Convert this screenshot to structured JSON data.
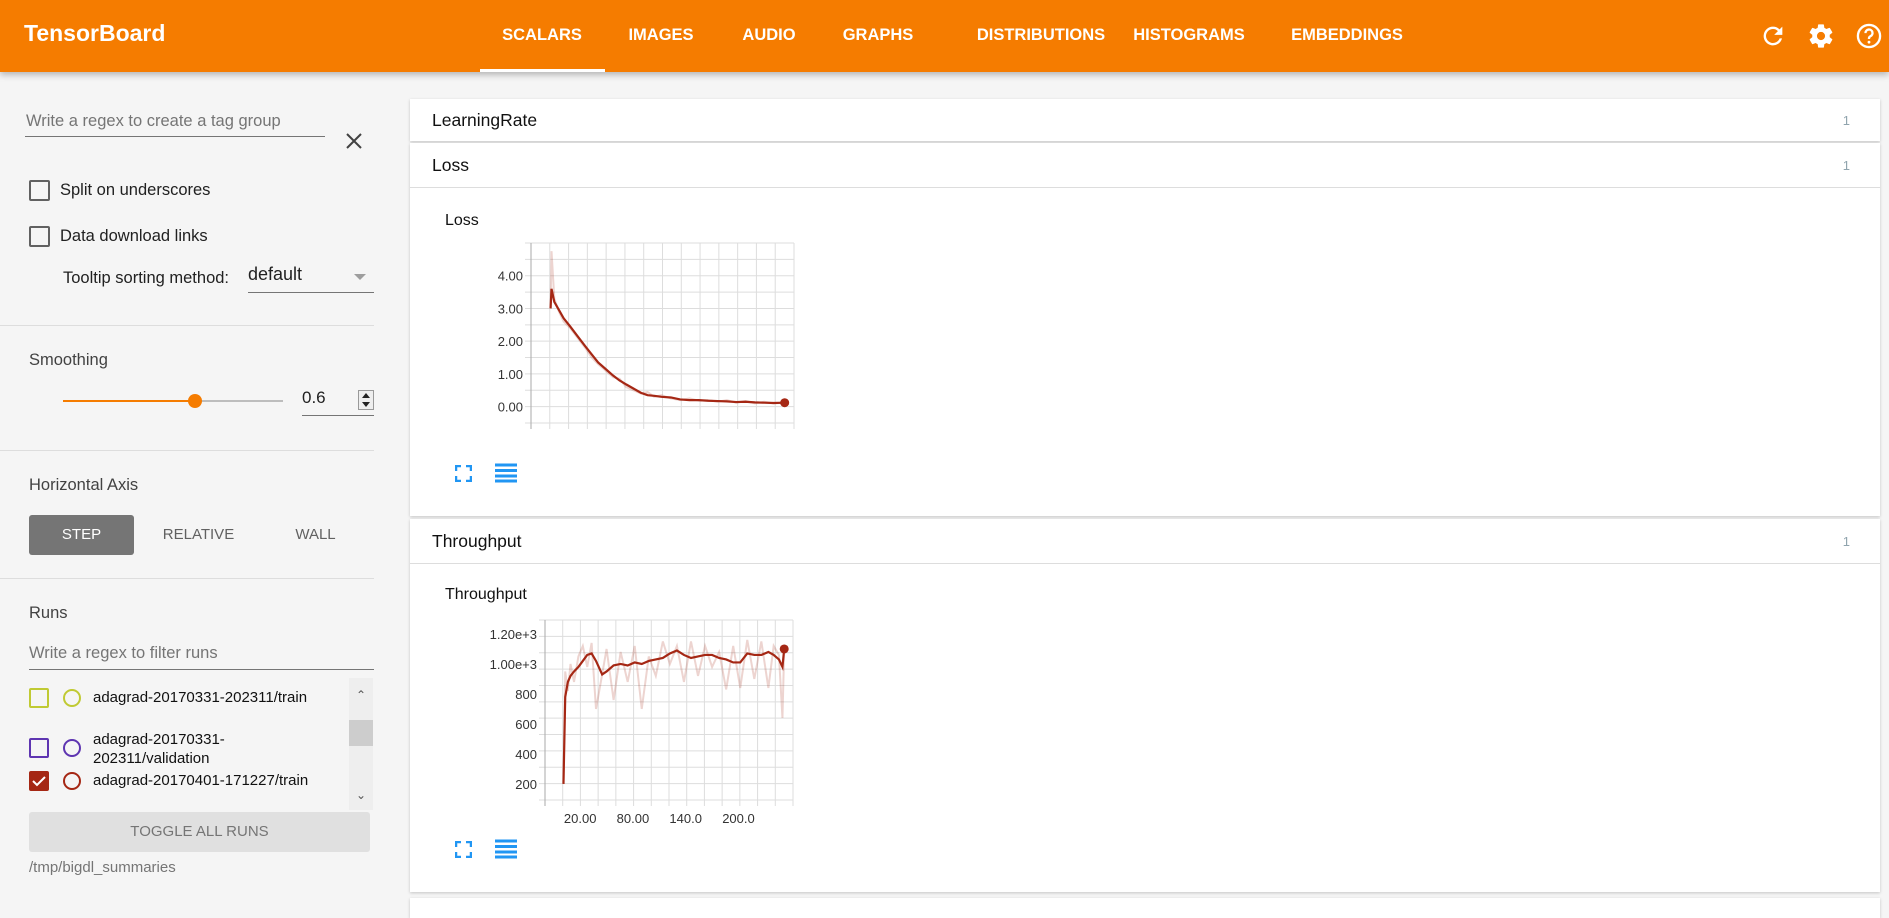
{
  "header": {
    "title": "TensorBoard",
    "tabs": [
      "SCALARS",
      "IMAGES",
      "AUDIO",
      "GRAPHS",
      "DISTRIBUTIONS",
      "HISTOGRAMS",
      "EMBEDDINGS"
    ],
    "active_tab": "SCALARS",
    "icons": [
      "refresh-icon",
      "settings-icon",
      "help-icon"
    ],
    "color": "#f57c00"
  },
  "sidebar": {
    "tag_regex_placeholder": "Write a regex to create a tag group",
    "split_underscores": {
      "label": "Split on underscores",
      "checked": false
    },
    "download_links": {
      "label": "Data download links",
      "checked": false
    },
    "tooltip_sort": {
      "label": "Tooltip sorting method:",
      "value": "default"
    },
    "smoothing": {
      "label": "Smoothing",
      "value": "0.6",
      "fraction": 0.6
    },
    "horizontal_axis": {
      "label": "Horizontal Axis",
      "options": [
        "STEP",
        "RELATIVE",
        "WALL"
      ],
      "selected": "STEP"
    },
    "runs": {
      "label": "Runs",
      "filter_placeholder": "Write a regex to filter runs",
      "items": [
        {
          "name": "adagrad-20170331-202311/train",
          "checked": false,
          "color": "#c0ca33"
        },
        {
          "name": "adagrad-20170331-202311/validation",
          "checked": false,
          "color": "#5e35b1"
        },
        {
          "name": "adagrad-20170401-171227/train",
          "checked": true,
          "color": "#a52714"
        }
      ],
      "toggle_all": "TOGGLE ALL RUNS",
      "logdir": "/tmp/bigdl_summaries"
    }
  },
  "cards": [
    {
      "title": "LearningRate",
      "count": "1"
    },
    {
      "title": "Loss",
      "count": "1"
    },
    {
      "title": "Throughput",
      "count": "1"
    }
  ],
  "chart_data": [
    {
      "type": "line",
      "title": "Loss",
      "xlim": [
        -20,
        262
      ],
      "ylim": [
        -0.5,
        5.0
      ],
      "yticks": [
        "4.00",
        "3.00",
        "2.00",
        "1.00",
        "0.00"
      ],
      "ytick_values": [
        4,
        3,
        2,
        1,
        0
      ],
      "xticks": [],
      "grid": true,
      "color": "#a52714",
      "x": [
        1,
        2,
        5,
        10,
        15,
        22,
        30,
        38,
        45,
        52,
        60,
        68,
        75,
        82,
        90,
        98,
        105,
        112,
        120,
        130,
        140,
        150,
        160,
        170,
        180,
        190,
        200,
        210,
        220,
        230,
        240,
        252
      ],
      "smoothed": [
        3.0,
        3.6,
        3.2,
        2.95,
        2.7,
        2.45,
        2.15,
        1.85,
        1.6,
        1.35,
        1.15,
        0.95,
        0.8,
        0.68,
        0.55,
        0.42,
        0.35,
        0.33,
        0.3,
        0.28,
        0.22,
        0.2,
        0.2,
        0.18,
        0.17,
        0.16,
        0.14,
        0.15,
        0.13,
        0.12,
        0.11,
        0.12
      ],
      "raw": [
        3.0,
        4.75,
        3.3,
        2.9,
        2.6,
        2.4,
        2.1,
        1.8,
        1.5,
        1.3,
        1.1,
        0.9,
        0.85,
        0.6,
        0.5,
        0.4,
        0.45,
        0.3,
        0.35,
        0.25,
        0.2,
        0.25,
        0.18,
        0.2,
        0.15,
        0.2,
        0.12,
        0.17,
        0.1,
        0.15,
        0.1,
        0.12
      ]
    },
    {
      "type": "line",
      "title": "Throughput",
      "xlim": [
        -20,
        262
      ],
      "ylim": [
        93,
        1293
      ],
      "yticks": [
        "1.20e+3",
        "1.00e+3",
        "800",
        "600",
        "400",
        "200"
      ],
      "ytick_values": [
        1200,
        1000,
        800,
        600,
        400,
        200
      ],
      "xticks": [
        "20.00",
        "80.00",
        "140.0",
        "200.0"
      ],
      "xtick_values": [
        20,
        80,
        140,
        200
      ],
      "grid": true,
      "color": "#a52714",
      "x": [
        1,
        3,
        6,
        9,
        13,
        18,
        23,
        28,
        33,
        38,
        45,
        50,
        58,
        66,
        74,
        82,
        90,
        98,
        106,
        114,
        122,
        130,
        138,
        146,
        154,
        162,
        170,
        178,
        186,
        194,
        202,
        210,
        218,
        226,
        234,
        240,
        246,
        250,
        252
      ],
      "smoothed": [
        200,
        780,
        880,
        920,
        950,
        980,
        1020,
        1060,
        1070,
        1020,
        930,
        950,
        990,
        1000,
        990,
        1010,
        1000,
        1020,
        1030,
        1040,
        1070,
        1090,
        1060,
        1040,
        1050,
        1060,
        1060,
        1040,
        1030,
        1010,
        1010,
        1070,
        1060,
        1060,
        1080,
        1060,
        1030,
        980,
        1100
      ],
      "raw": [
        200,
        950,
        820,
        1000,
        880,
        1050,
        1120,
        980,
        1140,
        700,
        930,
        1100,
        760,
        1080,
        880,
        1120,
        700,
        1050,
        920,
        1150,
        1000,
        1120,
        880,
        1150,
        920,
        1120,
        980,
        1080,
        830,
        1120,
        840,
        1160,
        900,
        1150,
        840,
        1120,
        1060,
        640,
        1100
      ]
    }
  ]
}
